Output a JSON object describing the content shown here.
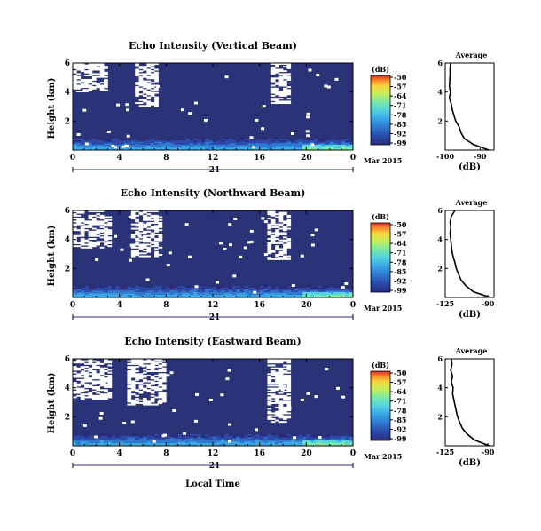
{
  "figure": {
    "date_label": "Mar 2015",
    "day_label": "21",
    "xlabel": "Local Time"
  },
  "colors": {
    "background_echo": "#2a3278",
    "missing": "#ffffff",
    "scale": [
      "#2a2c7a",
      "#2c48a8",
      "#2f78d0",
      "#3aa6e6",
      "#52d4e0",
      "#7ae8a8",
      "#c6ee5a",
      "#f6d63a",
      "#f58a2a",
      "#e0262a"
    ]
  },
  "chart_data": [
    {
      "type": "heatmap",
      "title": "Echo Intensity (Vertical Beam)",
      "xlabel": "",
      "ylabel": "Height (km)",
      "x_ticks": [
        "0",
        "4",
        "8",
        "12",
        "16",
        "20",
        "0"
      ],
      "xlim": [
        0,
        24
      ],
      "y_ticks": [
        "2",
        "4",
        "6"
      ],
      "ylim": [
        0,
        6
      ],
      "colorbar": {
        "label": "(dB)",
        "ticks": [
          "-50",
          "-57",
          "-64",
          "-71",
          "-78",
          "-85",
          "-92",
          "-99"
        ],
        "range": [
          -99,
          -50
        ]
      },
      "blank_regions": [
        {
          "t": [
            0.0,
            2.8
          ],
          "h": [
            4.0,
            6.0
          ]
        },
        {
          "t": [
            5.2,
            7.2
          ],
          "h": [
            3.0,
            6.0
          ]
        },
        {
          "t": [
            16.8,
            18.4
          ],
          "h": [
            3.2,
            6.0
          ]
        }
      ],
      "profile": {
        "title": "Average",
        "xlabel": "(dB)",
        "x_ticks": [
          "-100",
          "-90"
        ],
        "xlim": [
          -100,
          -86
        ],
        "y_ticks": [
          "2",
          "4",
          "6"
        ],
        "ylim": [
          0,
          6
        ],
        "height": [
          0.0,
          0.4,
          0.8,
          1.2,
          1.6,
          2.0,
          2.4,
          2.8,
          3.2,
          3.6,
          4.0,
          4.4,
          4.8,
          5.2,
          5.6,
          6.0
        ],
        "value": [
          -87.5,
          -92.0,
          -94.5,
          -95.5,
          -96.0,
          -97.0,
          -97.5,
          -98.0,
          -98.3,
          -98.8,
          -98.5,
          -98.8,
          -98.7,
          -98.6,
          -98.6,
          -98.5
        ]
      }
    },
    {
      "type": "heatmap",
      "title": "Echo Intensity (Northward Beam)",
      "xlabel": "",
      "ylabel": "Height (km)",
      "x_ticks": [
        "0",
        "4",
        "8",
        "12",
        "16",
        "20",
        "0"
      ],
      "xlim": [
        0,
        24
      ],
      "y_ticks": [
        "2",
        "4",
        "6"
      ],
      "ylim": [
        0,
        6
      ],
      "colorbar": {
        "label": "(dB)",
        "ticks": [
          "-50",
          "-57",
          "-64",
          "-71",
          "-78",
          "-85",
          "-92",
          "-99"
        ],
        "range": [
          -99,
          -50
        ]
      },
      "blank_regions": [
        {
          "t": [
            0.0,
            3.0
          ],
          "h": [
            3.4,
            6.0
          ]
        },
        {
          "t": [
            5.0,
            7.6
          ],
          "h": [
            2.8,
            6.0
          ]
        },
        {
          "t": [
            16.6,
            18.4
          ],
          "h": [
            2.6,
            6.0
          ]
        }
      ],
      "profile": {
        "title": "Average",
        "xlabel": "(dB)",
        "x_ticks": [
          "-125",
          "-90"
        ],
        "xlim": [
          -125,
          -85
        ],
        "y_ticks": [
          "2",
          "4",
          "6"
        ],
        "ylim": [
          0,
          6
        ],
        "height": [
          0.0,
          0.4,
          0.8,
          1.2,
          1.6,
          2.0,
          2.4,
          2.8,
          3.2,
          3.6,
          4.0,
          4.4,
          4.8,
          5.2,
          5.6,
          6.0
        ],
        "value": [
          -88.0,
          -102.0,
          -108.0,
          -112.0,
          -114.0,
          -116.0,
          -117.0,
          -118.5,
          -119.5,
          -120.0,
          -120.5,
          -121.0,
          -120.5,
          -121.0,
          -120.0,
          -117.0
        ]
      }
    },
    {
      "type": "heatmap",
      "title": "Echo Intensity (Eastward Beam)",
      "xlabel": "Local Time",
      "ylabel": "Height (km)",
      "x_ticks": [
        "0",
        "4",
        "8",
        "12",
        "16",
        "20",
        "0"
      ],
      "xlim": [
        0,
        24
      ],
      "y_ticks": [
        "2",
        "4",
        "6"
      ],
      "ylim": [
        0,
        6
      ],
      "colorbar": {
        "label": "(dB)",
        "ticks": [
          "-50",
          "-57",
          "-64",
          "-71",
          "-78",
          "-85",
          "-92",
          "-99"
        ],
        "range": [
          -99,
          -50
        ]
      },
      "blank_regions": [
        {
          "t": [
            0.0,
            3.2
          ],
          "h": [
            3.2,
            6.0
          ]
        },
        {
          "t": [
            4.6,
            7.8
          ],
          "h": [
            2.8,
            6.0
          ]
        },
        {
          "t": [
            16.6,
            18.4
          ],
          "h": [
            1.6,
            6.0
          ]
        }
      ],
      "profile": {
        "title": "Average",
        "xlabel": "(dB)",
        "x_ticks": [
          "-125",
          "-90"
        ],
        "xlim": [
          -125,
          -85
        ],
        "y_ticks": [
          "2",
          "4",
          "6"
        ],
        "ylim": [
          0,
          6
        ],
        "height": [
          0.0,
          0.4,
          0.8,
          1.2,
          1.6,
          2.0,
          2.4,
          2.8,
          3.2,
          3.6,
          4.0,
          4.4,
          4.8,
          5.2,
          5.6,
          6.0
        ],
        "value": [
          -89.0,
          -101.0,
          -107.0,
          -111.0,
          -113.0,
          -115.0,
          -116.0,
          -117.0,
          -118.0,
          -119.0,
          -118.5,
          -120.0,
          -119.0,
          -120.5,
          -119.5,
          -120.0
        ]
      }
    }
  ]
}
